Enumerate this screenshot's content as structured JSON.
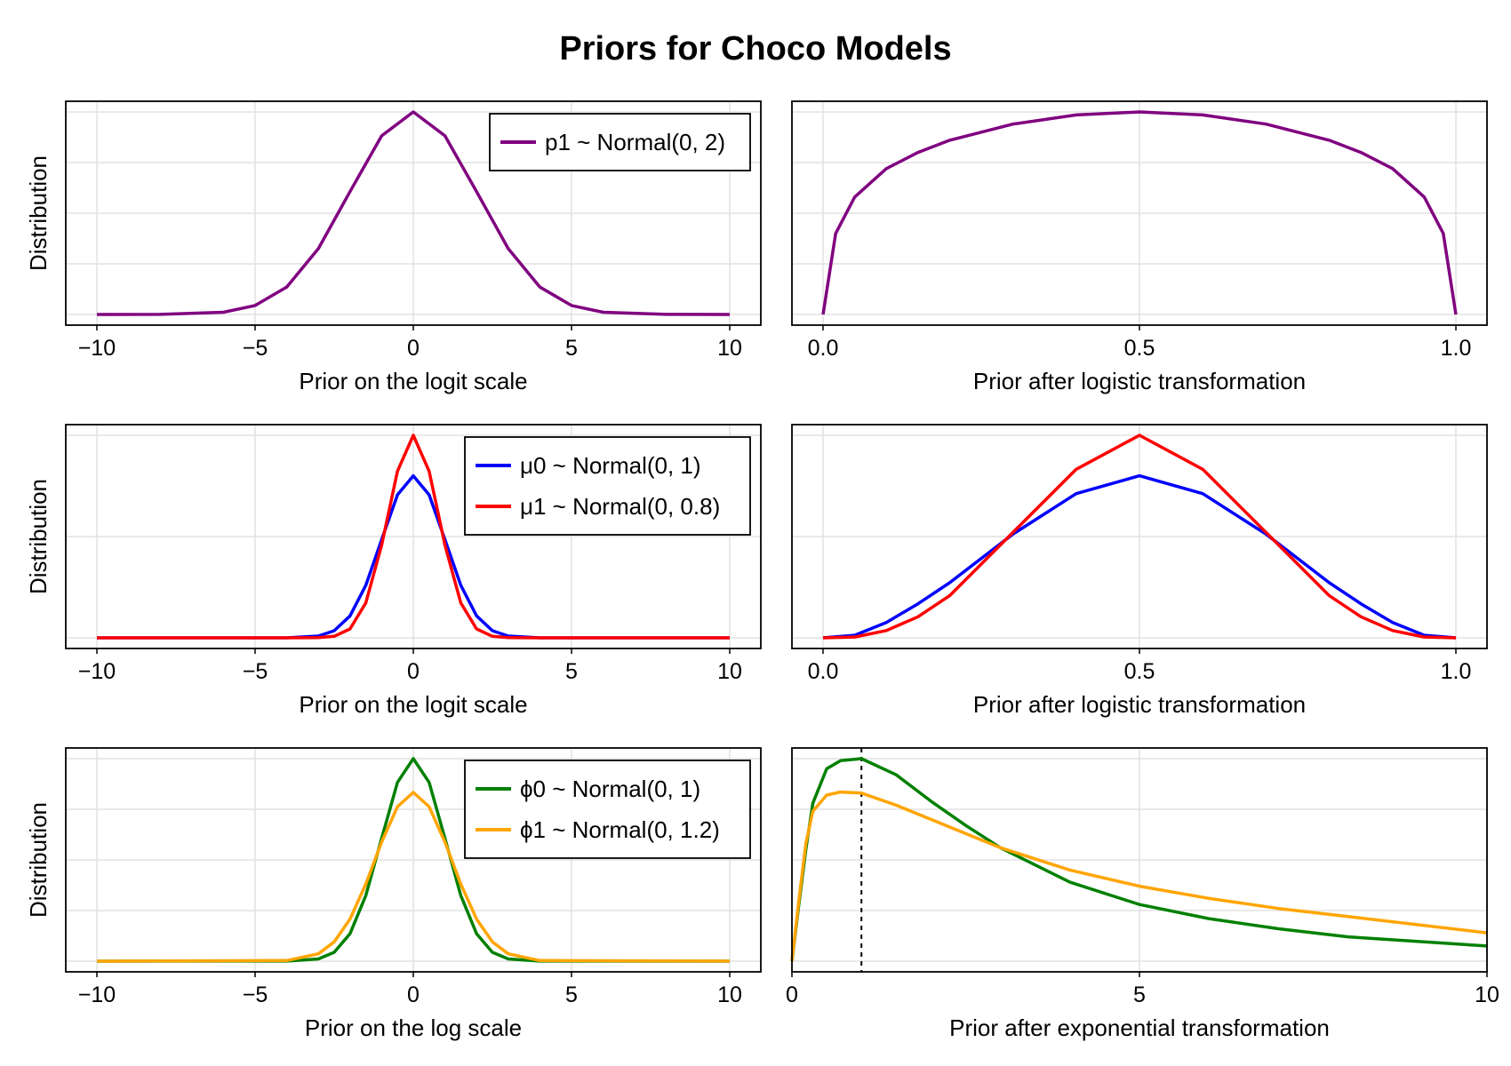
{
  "title": "Priors for Choco Models",
  "chart_data": [
    {
      "type": "line",
      "xlabel": "Prior on the logit scale",
      "ylabel": "Distribution",
      "xlim": [
        -10,
        10
      ],
      "xticks": [
        "−10",
        "−5",
        "0",
        "5",
        "10"
      ],
      "grid": true,
      "legend": "top-right",
      "series": [
        {
          "name": "p1 ~ Normal(0, 2)",
          "color": "#800080",
          "x": [
            -10,
            -8,
            -6,
            -5,
            -4,
            -3,
            -2,
            -1,
            0,
            1,
            2,
            3,
            4,
            5,
            6,
            8,
            10
          ],
          "y": [
            0.0,
            0.0001,
            0.0022,
            0.0088,
            0.027,
            0.0648,
            0.121,
            0.176,
            0.1995,
            0.176,
            0.121,
            0.0648,
            0.027,
            0.0088,
            0.0022,
            0.0001,
            0.0
          ]
        }
      ]
    },
    {
      "type": "line",
      "xlabel": "Prior after logistic transformation",
      "xlim": [
        0,
        1
      ],
      "xticks": [
        "0.0",
        "0.5",
        "1.0"
      ],
      "grid": true,
      "series": [
        {
          "name": "p1 ~ Normal(0, 2)",
          "color": "#800080",
          "x": [
            0.0,
            0.02,
            0.05,
            0.1,
            0.15,
            0.2,
            0.3,
            0.4,
            0.5,
            0.6,
            0.7,
            0.8,
            0.85,
            0.9,
            0.95,
            0.98,
            1.0
          ],
          "y": [
            0.0,
            0.4,
            0.58,
            0.72,
            0.8,
            0.86,
            0.94,
            0.985,
            1.0,
            0.985,
            0.94,
            0.86,
            0.8,
            0.72,
            0.58,
            0.4,
            0.0
          ]
        }
      ]
    },
    {
      "type": "line",
      "xlabel": "Prior on the logit scale",
      "ylabel": "Distribution",
      "xlim": [
        -10,
        10
      ],
      "xticks": [
        "−10",
        "−5",
        "0",
        "5",
        "10"
      ],
      "grid": true,
      "legend": "top-right",
      "series": [
        {
          "name": "μ0 ~ Normal(0, 1)",
          "color": "#0000ff",
          "x": [
            -10,
            -4,
            -3,
            -2.5,
            -2,
            -1.5,
            -1,
            -0.5,
            0,
            0.5,
            1,
            1.5,
            2,
            2.5,
            3,
            4,
            10
          ],
          "y": [
            0.0,
            0.0001,
            0.0044,
            0.0175,
            0.054,
            0.1295,
            0.242,
            0.3521,
            0.3989,
            0.3521,
            0.242,
            0.1295,
            0.054,
            0.0175,
            0.0044,
            0.0001,
            0.0
          ]
        },
        {
          "name": "μ1 ~ Normal(0, 0.8)",
          "color": "#ff0000",
          "x": [
            -10,
            -4,
            -3,
            -2.5,
            -2,
            -1.5,
            -1,
            -0.5,
            0,
            0.5,
            1,
            1.5,
            2,
            2.5,
            3,
            4,
            10
          ],
          "y": [
            0.0,
            0.0,
            0.0004,
            0.0038,
            0.0219,
            0.0862,
            0.2283,
            0.4103,
            0.4987,
            0.4103,
            0.2283,
            0.0862,
            0.0219,
            0.0038,
            0.0004,
            0.0,
            0.0
          ]
        }
      ]
    },
    {
      "type": "line",
      "xlabel": "Prior after logistic transformation",
      "xlim": [
        0,
        1
      ],
      "xticks": [
        "0.0",
        "0.5",
        "1.0"
      ],
      "grid": true,
      "series": [
        {
          "name": "μ0 ~ Normal(0, 1)",
          "color": "#0000ff",
          "x": [
            0.0,
            0.05,
            0.1,
            0.15,
            0.2,
            0.3,
            0.4,
            0.5,
            0.6,
            0.7,
            0.8,
            0.85,
            0.9,
            0.95,
            1.0
          ],
          "y": [
            0.0,
            0.016,
            0.095,
            0.21,
            0.34,
            0.64,
            0.89,
            1.0,
            0.89,
            0.64,
            0.34,
            0.21,
            0.095,
            0.016,
            0.0
          ]
        },
        {
          "name": "μ1 ~ Normal(0, 0.8)",
          "color": "#ff0000",
          "x": [
            0.0,
            0.05,
            0.1,
            0.15,
            0.2,
            0.3,
            0.4,
            0.5,
            0.6,
            0.7,
            0.8,
            0.85,
            0.9,
            0.95,
            1.0
          ],
          "y": [
            0.0,
            0.005,
            0.045,
            0.13,
            0.26,
            0.65,
            1.04,
            1.25,
            1.04,
            0.65,
            0.26,
            0.13,
            0.045,
            0.005,
            0.0
          ]
        }
      ]
    },
    {
      "type": "line",
      "xlabel": "Prior on the log scale",
      "ylabel": "Distribution",
      "xlim": [
        -10,
        10
      ],
      "xticks": [
        "−10",
        "−5",
        "0",
        "5",
        "10"
      ],
      "grid": true,
      "legend": "top-right",
      "series": [
        {
          "name": "ϕ0 ~ Normal(0, 1)",
          "color": "#008000",
          "x": [
            -10,
            -4,
            -3,
            -2.5,
            -2,
            -1.5,
            -1,
            -0.5,
            0,
            0.5,
            1,
            1.5,
            2,
            2.5,
            3,
            4,
            10
          ],
          "y": [
            0.0,
            0.0001,
            0.0044,
            0.0175,
            0.054,
            0.1295,
            0.242,
            0.3521,
            0.3989,
            0.3521,
            0.242,
            0.1295,
            0.054,
            0.0175,
            0.0044,
            0.0001,
            0.0
          ]
        },
        {
          "name": "ϕ1 ~ Normal(0, 1.2)",
          "color": "#ffa500",
          "x": [
            -10,
            -4,
            -3,
            -2.5,
            -2,
            -1.5,
            -1,
            -0.5,
            0,
            0.5,
            1,
            1.5,
            2,
            2.5,
            3,
            4,
            10
          ],
          "y": [
            0.0,
            0.0013,
            0.0146,
            0.038,
            0.0829,
            0.152,
            0.2346,
            0.3042,
            0.3325,
            0.3042,
            0.2346,
            0.152,
            0.0829,
            0.038,
            0.0146,
            0.0013,
            0.0
          ]
        }
      ]
    },
    {
      "type": "line",
      "xlabel": "Prior after exponential transformation",
      "xlim": [
        0,
        10
      ],
      "xticks": [
        "0",
        "5",
        "10"
      ],
      "grid": true,
      "vline": 1,
      "series": [
        {
          "name": "ϕ0 ~ Normal(0, 1)",
          "color": "#008000",
          "x": [
            0.0,
            0.1,
            0.2,
            0.3,
            0.5,
            0.7,
            1.0,
            1.5,
            2.0,
            2.5,
            3.0,
            4.0,
            5.0,
            6.0,
            7.0,
            8.0,
            10.0
          ],
          "y": [
            0.0,
            0.28,
            0.55,
            0.78,
            0.95,
            0.99,
            1.0,
            0.92,
            0.79,
            0.67,
            0.56,
            0.39,
            0.28,
            0.21,
            0.16,
            0.12,
            0.075
          ]
        },
        {
          "name": "ϕ1 ~ Normal(0, 1.2)",
          "color": "#ffa500",
          "x": [
            0.0,
            0.1,
            0.2,
            0.3,
            0.5,
            0.7,
            1.0,
            1.5,
            2.0,
            2.5,
            3.0,
            4.0,
            5.0,
            6.0,
            7.0,
            8.0,
            10.0
          ],
          "y": [
            0.0,
            0.3,
            0.58,
            0.74,
            0.82,
            0.835,
            0.83,
            0.77,
            0.7,
            0.63,
            0.56,
            0.45,
            0.37,
            0.31,
            0.26,
            0.22,
            0.14
          ]
        }
      ]
    }
  ]
}
